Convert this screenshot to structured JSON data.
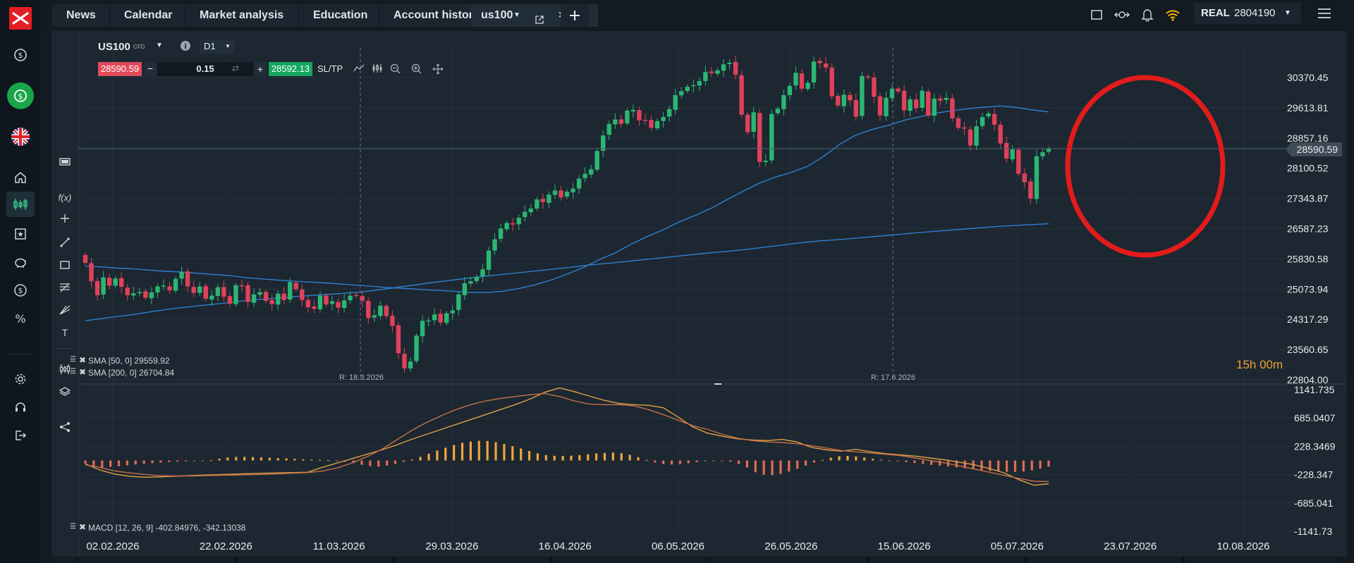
{
  "tabs": [
    "News",
    "Calendar",
    "Market analysis",
    "Education",
    "Account history"
  ],
  "instrument_tab": "us100",
  "account": {
    "type": "REAL",
    "number": "2804190"
  },
  "chart": {
    "symbol": "US100",
    "symbol_badge": "CFD",
    "timeframe": "D1",
    "sell_price": "28590.59",
    "buy_price": "28592.13",
    "volume": "0.15",
    "sltp_label": "SL/TP",
    "current_price_label": "28590.59",
    "countdown": "15h 00m",
    "sma_50_label": "SMA [50, 0] 29559.92",
    "sma_200_label": "SMA [200, 0] 26704.84",
    "macd_label": "MACD [12, 26, 9] -402.84976, -342.13038",
    "marker_1": "R: 18.3.2026",
    "marker_2": "R: 17.6.2026"
  },
  "chart_data": [
    {
      "type": "line",
      "title": "US100",
      "price_axis": [
        "30370.45",
        "29613.81",
        "28857.16",
        "28100.52",
        "27343.87",
        "26587.23",
        "25830.58",
        "25073.94",
        "24317.29",
        "23560.65",
        "22804.00"
      ],
      "date_axis": [
        "02.02.2026",
        "22.02.2026",
        "11.03.2026",
        "29.03.2026",
        "16.04.2026",
        "06.05.2026",
        "26.05.2026",
        "15.06.2026",
        "05.07.2026",
        "23.07.2026",
        "10.08.2026"
      ],
      "ylim": [
        22804.0,
        30370.45
      ],
      "close": [
        25730,
        25270,
        24920,
        25370,
        25160,
        25340,
        25130,
        24920,
        24970,
        25000,
        24860,
        24990,
        25140,
        25160,
        25040,
        25330,
        25500,
        25140,
        24980,
        25140,
        24830,
        24910,
        25120,
        24880,
        24710,
        25170,
        25160,
        24750,
        24940,
        25000,
        24780,
        24700,
        24960,
        24800,
        25250,
        25070,
        24800,
        24620,
        24580,
        24910,
        24690,
        24770,
        24610,
        24790,
        24910,
        24910,
        24780,
        24350,
        24420,
        24660,
        24400,
        24150,
        23470,
        23090,
        23260,
        23910,
        24280,
        24290,
        24440,
        24240,
        24470,
        24540,
        24940,
        25220,
        25270,
        25380,
        25570,
        26040,
        26320,
        26590,
        26730,
        26690,
        26860,
        27010,
        27090,
        27320,
        27250,
        27440,
        27540,
        27370,
        27510,
        27590,
        27840,
        27960,
        28070,
        28530,
        28920,
        29210,
        29320,
        29210,
        29540,
        29560,
        29300,
        29290,
        29110,
        29280,
        29380,
        29580,
        29930,
        30030,
        30140,
        30180,
        30280,
        30510,
        30480,
        30550,
        30700,
        30740,
        30440,
        29440,
        29000,
        29500,
        28260,
        28290,
        29460,
        29590,
        29930,
        30160,
        30490,
        30090,
        30240,
        30770,
        30730,
        30620,
        29900,
        29670,
        29940,
        29800,
        29390,
        30410,
        30370,
        29890,
        29420,
        29860,
        30090,
        30020,
        29550,
        29820,
        29600,
        30040,
        29420,
        29840,
        29790,
        29860,
        29350,
        29110,
        29090,
        28670,
        29150,
        29380,
        29470,
        29190,
        28720,
        28340,
        28570,
        27960,
        27750,
        27340,
        28400,
        28500,
        28590
      ],
      "sma50": [
        25650,
        25630,
        25600,
        25580,
        25550,
        25520,
        25500,
        25470,
        25440,
        25410,
        25360,
        25330,
        25300,
        25270,
        25250,
        25230,
        25200,
        25170,
        25140,
        25110,
        25090,
        25060,
        25040,
        25020,
        24990,
        24990,
        25020,
        25090,
        25180,
        25300,
        25450,
        25610,
        25810,
        25980,
        26200,
        26390,
        26560,
        26760,
        26920,
        27100,
        27320,
        27530,
        27730,
        27880,
        28000,
        28150,
        28400,
        28700,
        28930,
        29070,
        29170,
        29300,
        29390,
        29480,
        29540,
        29590,
        29630,
        29660,
        29620,
        29560,
        29510
      ],
      "sma200": [
        24280,
        24360,
        24430,
        24520,
        24600,
        24660,
        24720,
        24790,
        24830,
        24880,
        24920,
        24960,
        25000,
        25070,
        25150,
        25230,
        25300,
        25370,
        25430,
        25490,
        25550,
        25610,
        25680,
        25730,
        25790,
        25850,
        25910,
        25970,
        26020,
        26080,
        26150,
        26220,
        26280,
        26320,
        26370,
        26420,
        26470,
        26520,
        26560,
        26610,
        26650,
        26680,
        26710
      ]
    },
    {
      "type": "bar",
      "title": "MACD [12, 26, 9]",
      "yticks": [
        "1141.735",
        "685.0407",
        "228.3469",
        "-228.347",
        "-685.041",
        "-1141.73"
      ],
      "ylim": [
        -1141.73,
        1141.735
      ],
      "histogram": [
        -48,
        -107,
        -129,
        -104,
        -93,
        -78,
        -65,
        -53,
        -43,
        -34,
        -26,
        -20,
        -14,
        -9,
        -3,
        4,
        29,
        48,
        57,
        58,
        55,
        50,
        44,
        38,
        33,
        26,
        20,
        14,
        8,
        3,
        -5,
        -21,
        -42,
        -70,
        -91,
        -99,
        -82,
        -57,
        -22,
        15,
        59,
        109,
        161,
        206,
        250,
        284,
        306,
        318,
        314,
        295,
        266,
        230,
        192,
        153,
        114,
        87,
        76,
        73,
        77,
        86,
        100,
        113,
        122,
        128,
        118,
        93,
        53,
        9,
        -33,
        -58,
        -66,
        -59,
        -44,
        -25,
        -9,
        -1,
        -2,
        -21,
        -58,
        -114,
        -190,
        -231,
        -237,
        -215,
        -179,
        -134,
        -83,
        -35,
        9,
        45,
        69,
        74,
        65,
        47,
        27,
        11,
        -1,
        -14,
        -26,
        -40,
        -55,
        -70,
        -83,
        -97,
        -112,
        -126,
        -142,
        -156,
        -167,
        -176,
        -183,
        -184,
        -178,
        -160,
        -132,
        -96
      ],
      "macd": [
        -55,
        -155,
        -220,
        -255,
        -270,
        -265,
        -255,
        -245,
        -235,
        -228,
        -220,
        -213,
        -206,
        -200,
        -195,
        -190,
        -110,
        -40,
        30,
        100,
        170,
        250,
        340,
        420,
        500,
        580,
        660,
        740,
        820,
        900,
        990,
        1100,
        1170,
        1110,
        1040,
        970,
        920,
        900,
        890,
        850,
        700,
        540,
        440,
        390,
        350,
        330,
        320,
        340,
        300,
        210,
        170,
        150,
        180,
        140,
        110,
        90,
        70,
        40,
        10,
        -30,
        -70,
        -130,
        -200,
        -310,
        -400,
        -375
      ],
      "signal": [
        -70,
        -110,
        -170,
        -200,
        -225,
        -245,
        -250,
        -250,
        -245,
        -240,
        -235,
        -230,
        -225,
        -215,
        -205,
        -195,
        -170,
        -120,
        -40,
        60,
        180,
        330,
        480,
        610,
        720,
        820,
        900,
        960,
        1000,
        1030,
        1060,
        1080,
        1030,
        960,
        910,
        900,
        900,
        880,
        820,
        740,
        650,
        560,
        500,
        420,
        360,
        320,
        300,
        290,
        270,
        240,
        200,
        160,
        140,
        120,
        100,
        80,
        40,
        0,
        -40,
        -90,
        -140,
        -190,
        -240,
        -290,
        -335,
        -340
      ]
    }
  ]
}
